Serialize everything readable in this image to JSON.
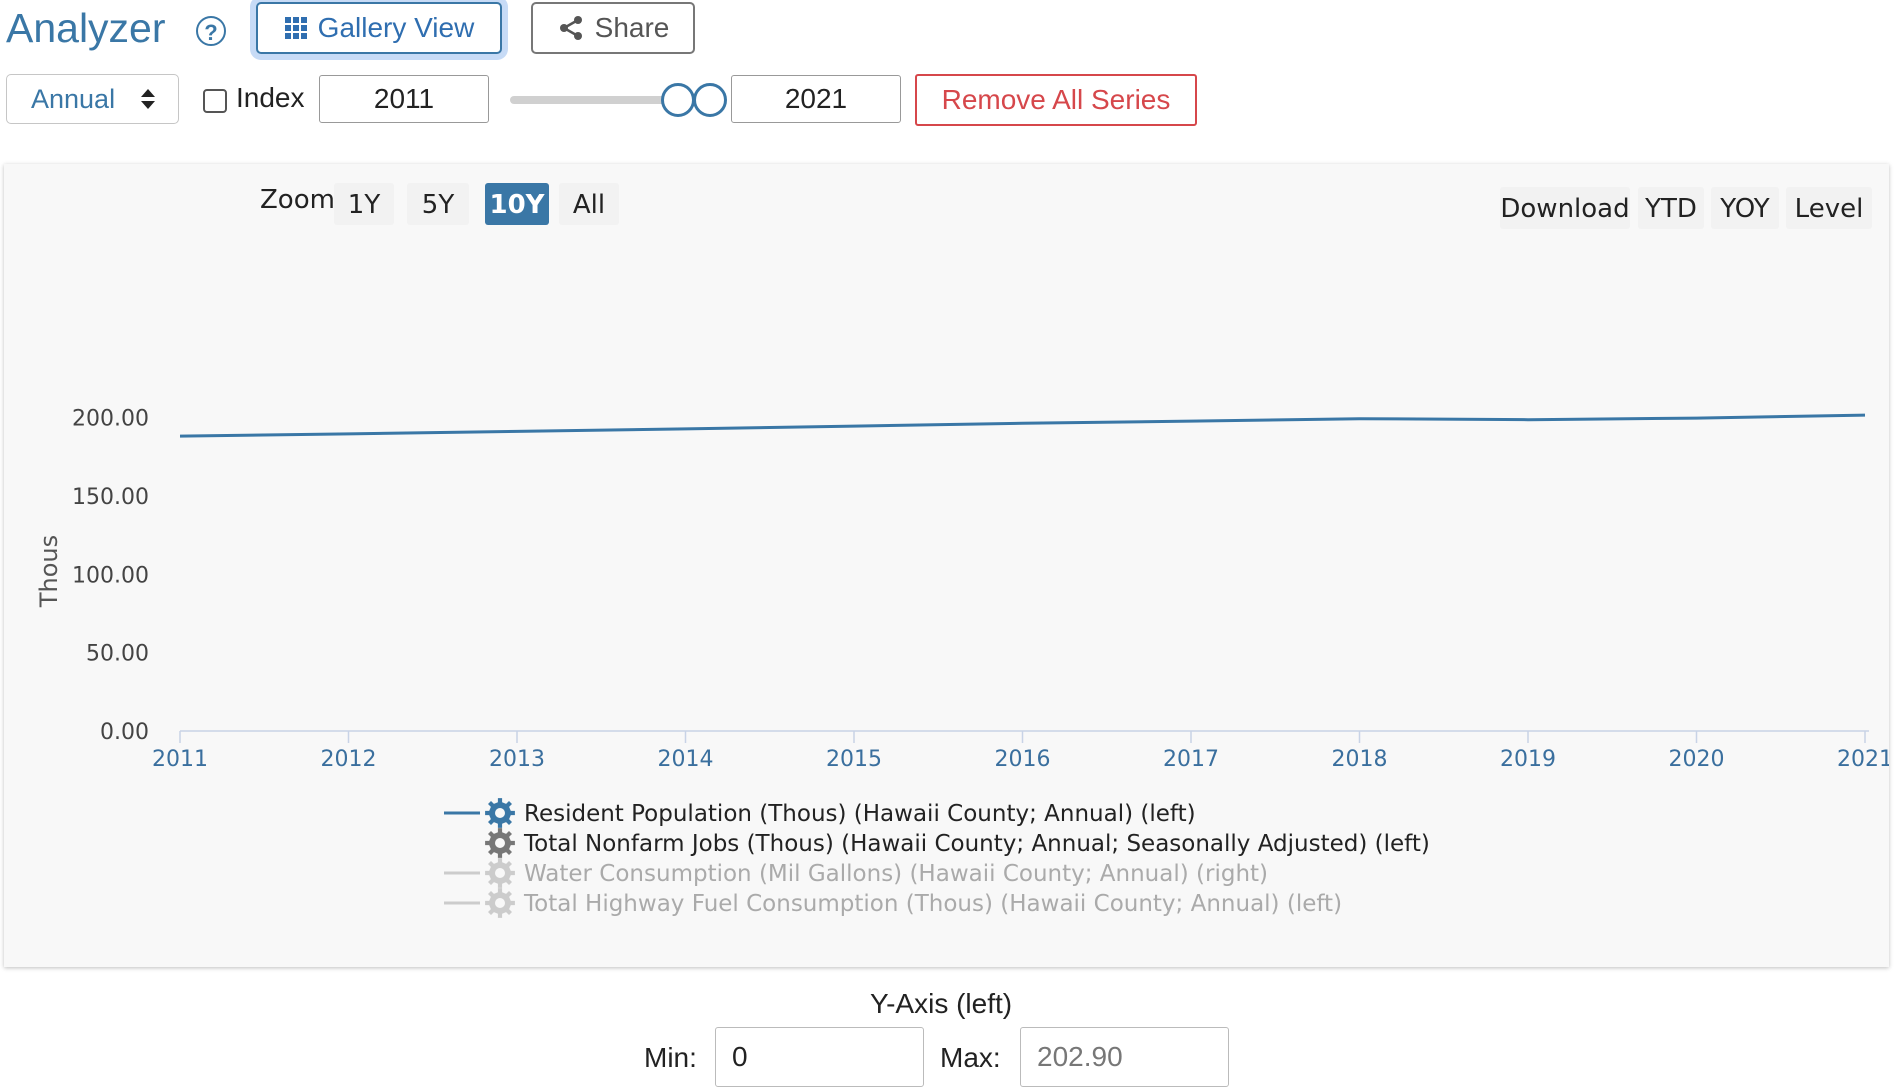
{
  "header": {
    "title": "Analyzer",
    "help_glyph": "?",
    "gallery_label": "Gallery View",
    "share_label": "Share"
  },
  "controls": {
    "frequency": "Annual",
    "index_label": "Index",
    "index_checked": false,
    "start_year": "2011",
    "end_year": "2021",
    "remove_label": "Remove All Series"
  },
  "chart_toolbar": {
    "zoom_label": "Zoom",
    "zoom_options": [
      "1Y",
      "5Y",
      "10Y",
      "All"
    ],
    "zoom_selected": "10Y",
    "right_buttons": [
      "Download",
      "YTD",
      "YOY",
      "Level"
    ],
    "selected_color": "#3a77a6"
  },
  "chart_data": {
    "type": "line",
    "ylabel": "Thous",
    "ylim": [
      0,
      202.9
    ],
    "y_ticks": [
      "0.00",
      "50.00",
      "100.00",
      "150.00",
      "200.00"
    ],
    "y_tick_values": [
      0,
      50,
      100,
      150,
      200
    ],
    "x": [
      "2011",
      "2012",
      "2013",
      "2014",
      "2015",
      "2016",
      "2017",
      "2018",
      "2019",
      "2020",
      "2021"
    ],
    "series": [
      {
        "name": "Resident Population (Thous) (Hawaii County; Annual) (left)",
        "color": "#3a77a6",
        "values": [
          187.5,
          188.9,
          190.5,
          192.1,
          193.9,
          195.7,
          197.1,
          198.6,
          198.0,
          199.0,
          200.9
        ]
      }
    ],
    "legend": [
      {
        "label": "Resident Population (Thous) (Hawaii County; Annual) (left)",
        "active": true,
        "line_color": "#3a77a6",
        "icon_color": "#3a77a6"
      },
      {
        "label": "Total Nonfarm Jobs (Thous) (Hawaii County; Annual; Seasonally Adjusted) (left)",
        "active": true,
        "line_color": null,
        "icon_color": "#777777"
      },
      {
        "label": "Water Consumption (Mil Gallons) (Hawaii County; Annual) (right)",
        "active": false,
        "line_color": "#cccccc",
        "icon_color": "#cccccc"
      },
      {
        "label": "Total Highway Fuel Consumption (Thous) (Hawaii County; Annual) (left)",
        "active": false,
        "line_color": "#cccccc",
        "icon_color": "#cccccc"
      }
    ],
    "legend_placement": "bottom-center",
    "grid": false
  },
  "yaxis": {
    "title": "Y-Axis (left)",
    "min_label": "Min:",
    "max_label": "Max:",
    "min_value": "0",
    "max_value": "202.90"
  }
}
